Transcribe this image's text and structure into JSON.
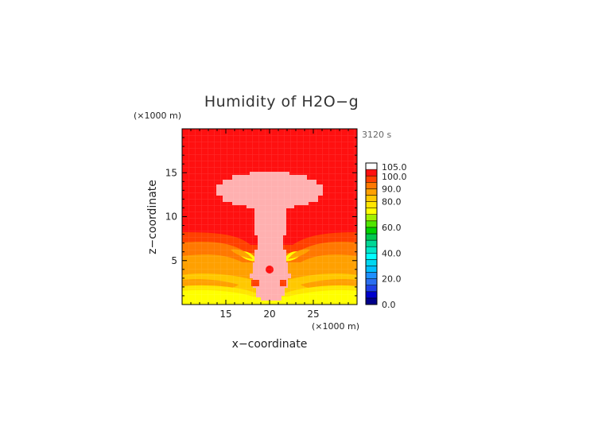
{
  "chart_data": {
    "type": "heatmap",
    "title": "Humidity of H2O−g",
    "time_label": "3120 s",
    "xlabel": "x−coordinate",
    "ylabel": "z−coordinate",
    "x_unit": "(×1000 m)",
    "y_unit": "(×1000 m)",
    "xlim": [
      10,
      30
    ],
    "ylim": [
      0,
      20
    ],
    "x_ticks": [
      "15",
      "20",
      "25"
    ],
    "y_ticks": [
      "5",
      "10",
      "15"
    ],
    "x_tick_values": [
      15,
      20,
      25
    ],
    "y_tick_values": [
      5,
      10,
      15
    ],
    "colorbar": {
      "labels": [
        "0.0",
        "20.0",
        "40.0",
        "60.0",
        "80.0",
        "90.0",
        "100.0",
        "105.0"
      ],
      "label_values": [
        0,
        20,
        40,
        60,
        80,
        90,
        100,
        105
      ],
      "levels": [
        {
          "from": 0,
          "to": 5,
          "color": "#00008b"
        },
        {
          "from": 5,
          "to": 10,
          "color": "#0000cd"
        },
        {
          "from": 10,
          "to": 15,
          "color": "#1e40e6"
        },
        {
          "from": 15,
          "to": 20,
          "color": "#2a6ef0"
        },
        {
          "from": 20,
          "to": 25,
          "color": "#1e90ff"
        },
        {
          "from": 25,
          "to": 30,
          "color": "#00bfff"
        },
        {
          "from": 30,
          "to": 35,
          "color": "#00d7f0"
        },
        {
          "from": 35,
          "to": 40,
          "color": "#00ffff"
        },
        {
          "from": 40,
          "to": 45,
          "color": "#00e6c8"
        },
        {
          "from": 45,
          "to": 50,
          "color": "#00d796"
        },
        {
          "from": 50,
          "to": 55,
          "color": "#00c850"
        },
        {
          "from": 55,
          "to": 60,
          "color": "#00d200"
        },
        {
          "from": 60,
          "to": 65,
          "color": "#50e600"
        },
        {
          "from": 65,
          "to": 70,
          "color": "#a0f000"
        },
        {
          "from": 70,
          "to": 75,
          "color": "#ffff00"
        },
        {
          "from": 75,
          "to": 80,
          "color": "#ffe600"
        },
        {
          "from": 80,
          "to": 85,
          "color": "#ffc800"
        },
        {
          "from": 85,
          "to": 90,
          "color": "#ffa000"
        },
        {
          "from": 90,
          "to": 95,
          "color": "#ff7800"
        },
        {
          "from": 95,
          "to": 100,
          "color": "#ff4000"
        },
        {
          "from": 100,
          "to": 105,
          "color": "#ff1010"
        },
        {
          "from": 105,
          "to": 110,
          "color": "#ffffff"
        }
      ]
    },
    "fields": {
      "background_value": 102,
      "cloud_value": 107,
      "cloud_color": "#ffb0b0"
    }
  }
}
